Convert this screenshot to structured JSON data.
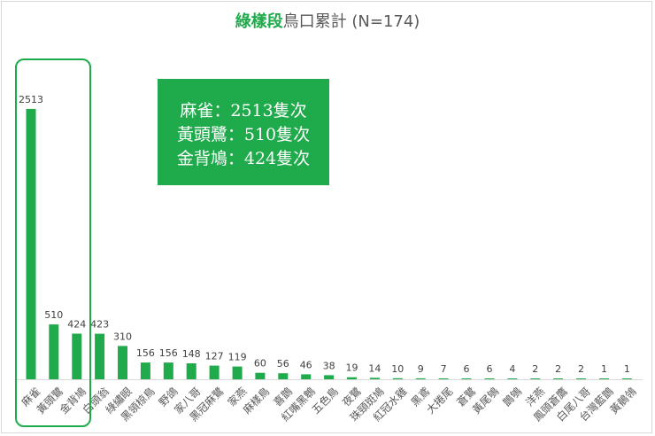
{
  "chart_data": {
    "type": "bar",
    "title_accent": "綠樣段",
    "title_rest": "鳥口累計 (N=174)",
    "categories": [
      "麻雀",
      "黃頭鷺",
      "金背鳩",
      "白頭翁",
      "綠繡眼",
      "黑領椋鳥",
      "野鴿",
      "家八哥",
      "黑冠麻鷺",
      "家燕",
      "麻樣鳥",
      "喜鵲",
      "紅嘴黑鵯",
      "五色鳥",
      "夜鷺",
      "珠頸斑鳩",
      "紅冠水雞",
      "黑鳶",
      "大捲尾",
      "蒼鷺",
      "黃尾鴝",
      "鵲鴝",
      "洋燕",
      "鳳頭蒼鷹",
      "白尾八哥",
      "台灣藍鵲",
      "黃鶺鴒"
    ],
    "values": [
      2513,
      510,
      424,
      423,
      310,
      156,
      156,
      148,
      127,
      119,
      60,
      56,
      46,
      38,
      19,
      14,
      10,
      9,
      7,
      6,
      6,
      4,
      2,
      2,
      2,
      1,
      1
    ],
    "ylim": [
      0,
      2800
    ],
    "grid": false,
    "bar_color": "#1faa4b",
    "highlight_color": "#1faa4b"
  },
  "callout": {
    "lines": [
      "麻雀：2513隻次",
      "黃頭鷺：510隻次",
      "金背鳩：424隻次"
    ]
  }
}
